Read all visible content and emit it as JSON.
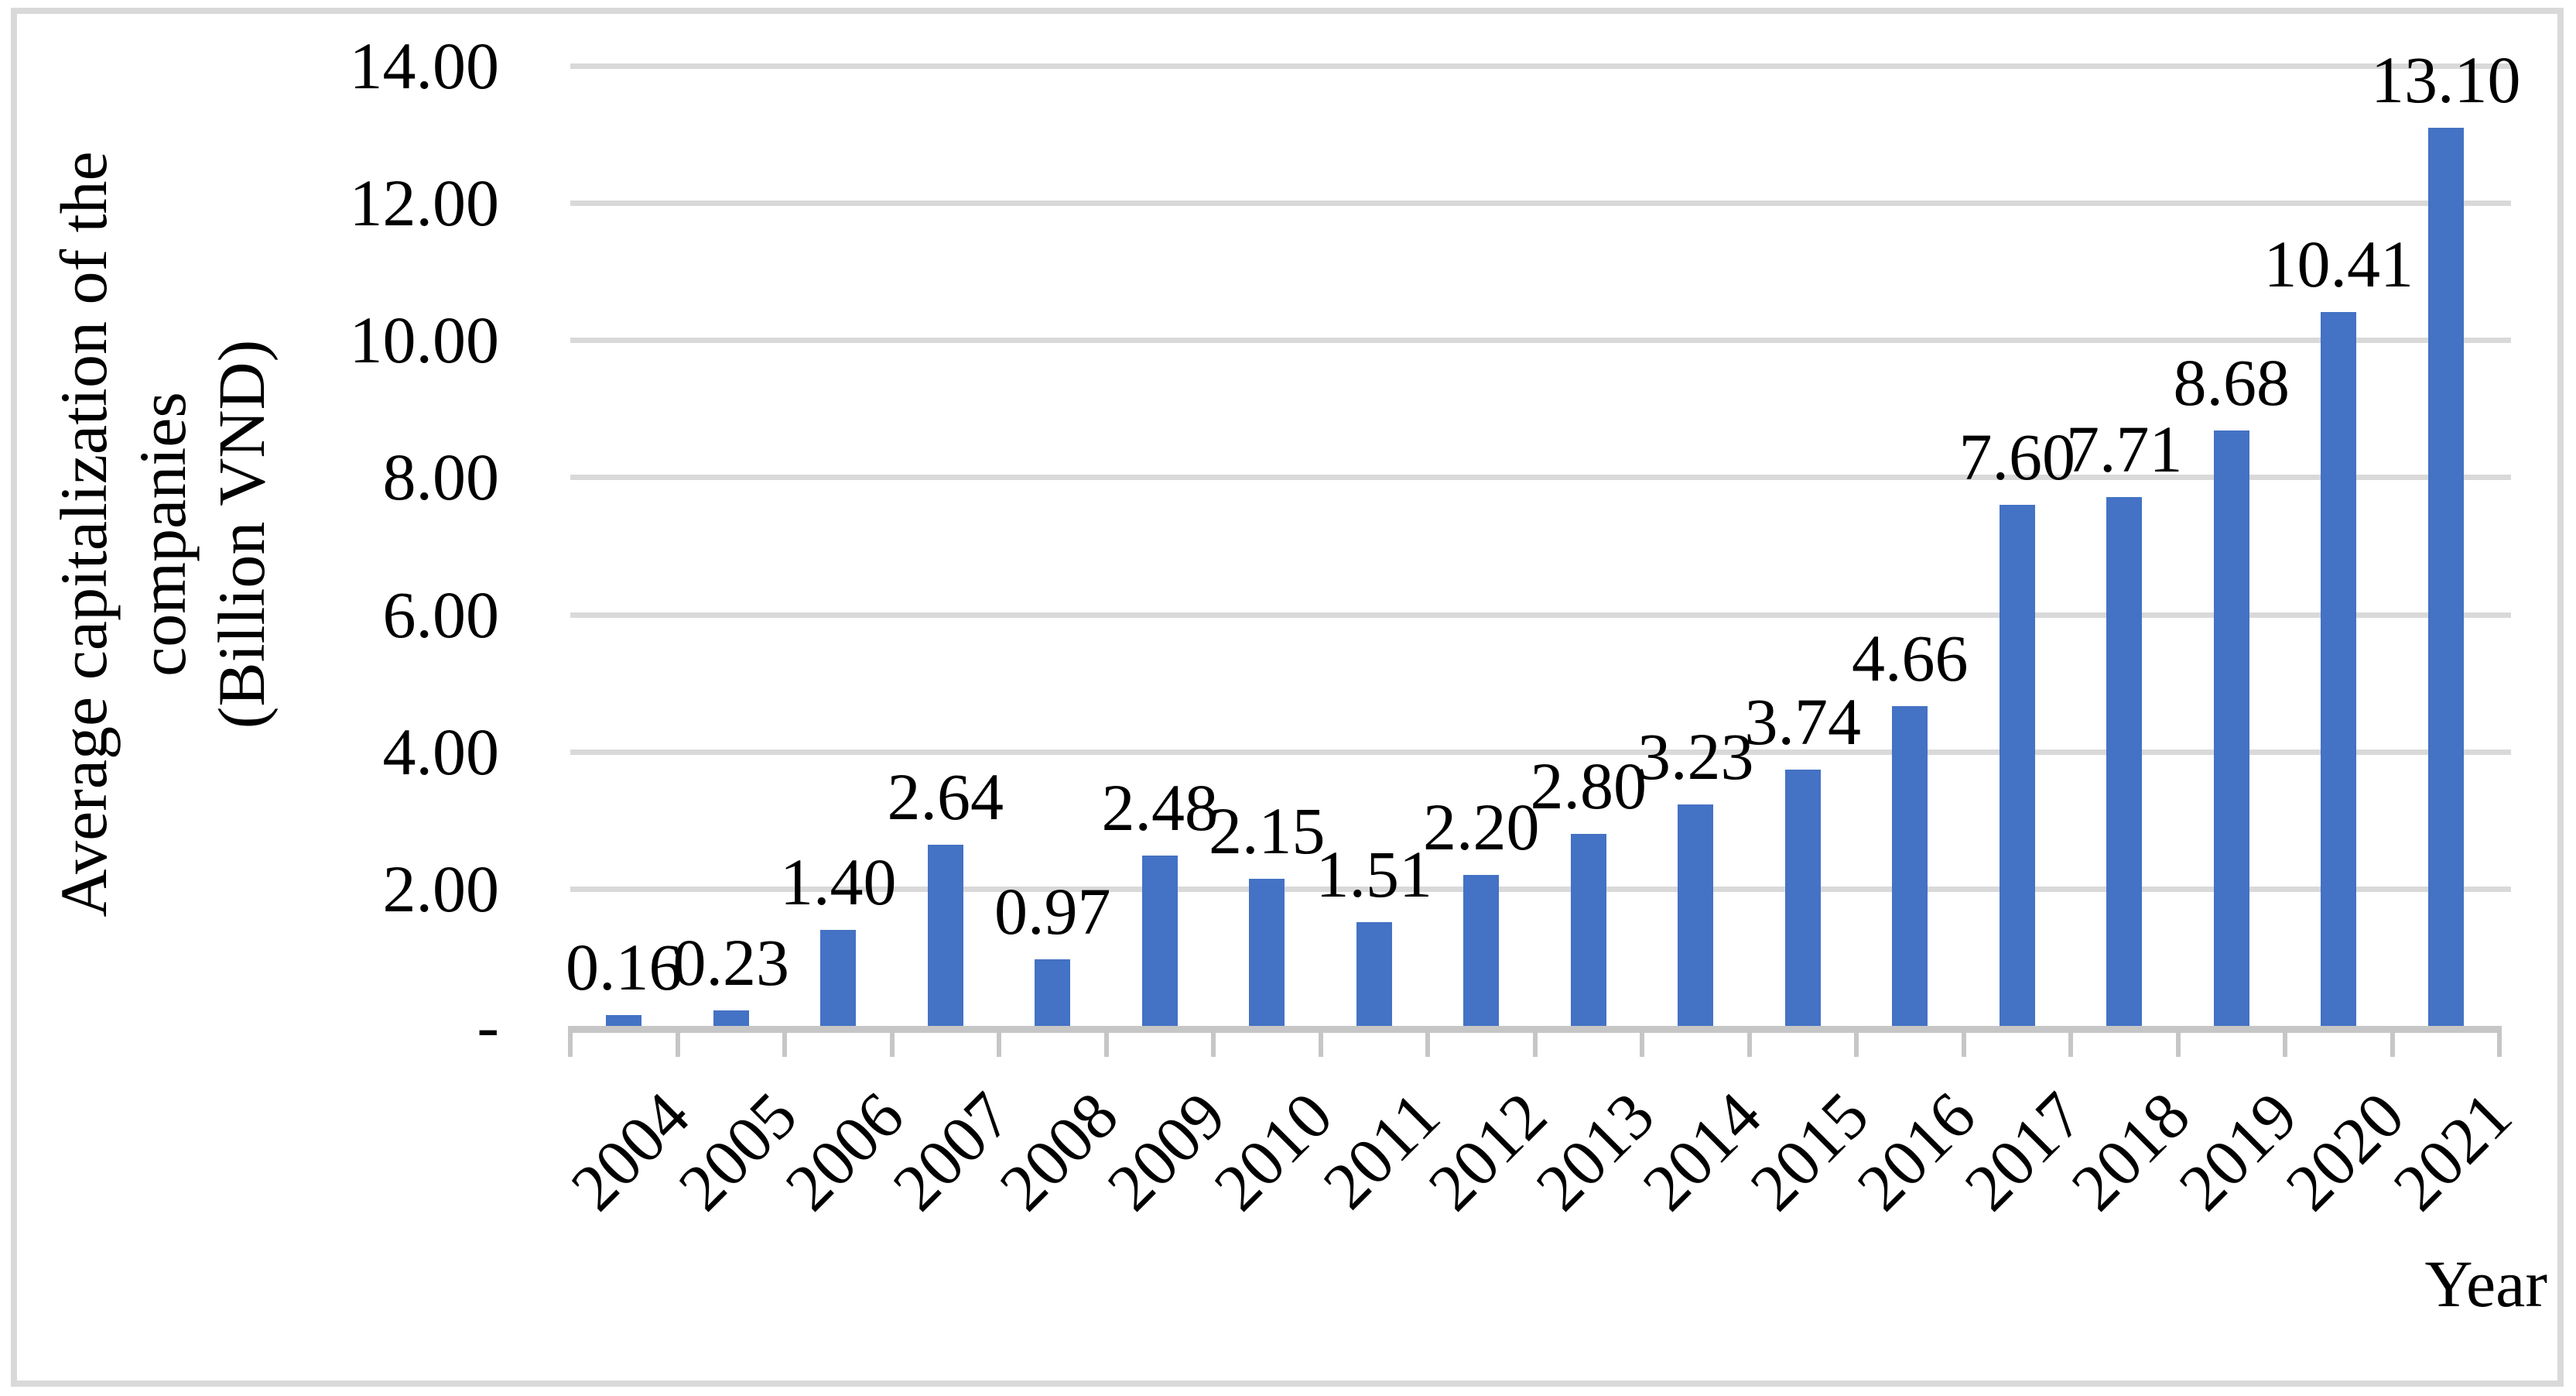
{
  "figure": {
    "background": "#FFFFFF",
    "frame_border_color": "#D9D9D9"
  },
  "chart_data": {
    "type": "bar",
    "title": "",
    "categories": [
      "2004",
      "2005",
      "2006",
      "2007",
      "2008",
      "2009",
      "2010",
      "2011",
      "2012",
      "2013",
      "2014",
      "2015",
      "2016",
      "2017",
      "2018",
      "2019",
      "2020",
      "2021"
    ],
    "values": [
      0.16,
      0.23,
      1.4,
      2.64,
      0.97,
      2.48,
      2.15,
      1.51,
      2.2,
      2.8,
      3.23,
      3.74,
      4.66,
      7.6,
      7.71,
      8.68,
      10.41,
      13.1
    ],
    "data_labels": [
      "0.16",
      "0.23",
      "1.40",
      "2.64",
      "0.97",
      "2.48",
      "2.15",
      "1.51",
      "2.20",
      "2.80",
      "3.23",
      "3.74",
      "4.66",
      "7.60",
      "7.71",
      "8.68",
      "10.41",
      "13.10"
    ],
    "xlabel": "Year",
    "ylabel": "Average capitalization of the companies (Billion VND)",
    "ylabel_lines": [
      "Average capitalization of the",
      "companies",
      "(Billion VND)"
    ],
    "ylim": [
      0,
      14
    ],
    "ytick_interval": 2,
    "ytick_labels": [
      "-",
      "2.00",
      "4.00",
      "6.00",
      "8.00",
      "10.00",
      "12.00",
      "14.00"
    ],
    "bar_color": "#4472C4",
    "gridline_color": "#D9D9D9",
    "axis_color": "#C6C6C6",
    "text_color": "#000000",
    "grid": true,
    "legend": "none"
  }
}
